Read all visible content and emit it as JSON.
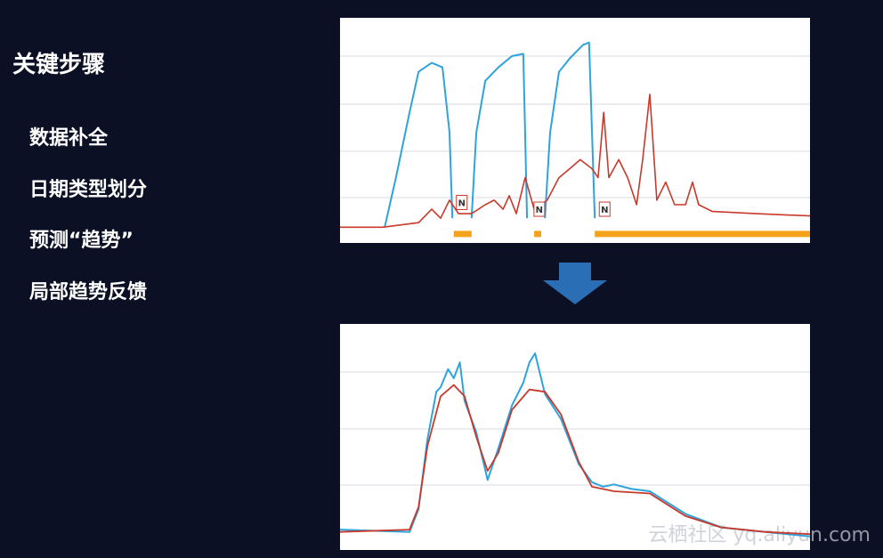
{
  "title": "关键步骤",
  "steps": [
    "数据补全",
    "日期类型划分",
    "预测“趋势”",
    "局部趋势反馈"
  ],
  "watermark": "云栖社区 yq.aliyun.com",
  "chart_data": [
    {
      "type": "line",
      "xlim": [
        0,
        100
      ],
      "ylim": [
        0,
        100
      ],
      "series": [
        {
          "color": "#2ea3dc",
          "width": 2,
          "x": [
            9.5,
            11.9,
            14.8,
            16.7,
            19.5,
            21.8,
            23.3,
            23.9,
            26,
            28.0,
            29.0,
            30.9,
            33.7,
            36.6,
            39.0,
            39.8,
            42,
            43.6,
            44.7,
            46.6,
            48.9,
            51.7,
            53.0,
            54.2
          ],
          "values": [
            7,
            29,
            58,
            76,
            80,
            78,
            49,
            11,
            null,
            11,
            49,
            72,
            78,
            83,
            84,
            11,
            null,
            11,
            49,
            76,
            82,
            88,
            89,
            11
          ]
        },
        {
          "color": "#c8392b",
          "width": 1.6,
          "x": [
            0,
            9.1,
            16.7,
            19.5,
            21.4,
            23.3,
            25.2,
            28.0,
            30.9,
            32.8,
            34.7,
            36.0,
            37.5,
            39.4,
            41.3,
            44.1,
            46.6,
            48.9,
            51.1,
            53.6,
            54.9,
            56.1,
            57.2,
            59.3,
            61.2,
            63.1,
            64.4,
            65.9,
            67.4,
            69.3,
            71.2,
            73.5,
            75.0,
            76.3,
            79.2,
            88.6,
            100
          ],
          "values": [
            7,
            7,
            9,
            15,
            11,
            19,
            13,
            13,
            17,
            19,
            15,
            21,
            13,
            29,
            15,
            19,
            29,
            33,
            37,
            33,
            29,
            58,
            29,
            37,
            29,
            17,
            37,
            66,
            19,
            27,
            17,
            17,
            27,
            17,
            14,
            13,
            12
          ]
        },
        {
          "color": "#f5a21b",
          "width": 7,
          "x": [
            24.2,
            28.0,
            30,
            41.3,
            42.8,
            45,
            54.2,
            100
          ],
          "values": [
            4,
            4,
            null,
            4,
            4,
            null,
            4,
            4
          ]
        }
      ],
      "annotations": [
        {
          "text": "N",
          "x": 25.9,
          "y": 18
        },
        {
          "text": "N",
          "x": 42.4,
          "y": 15
        },
        {
          "text": "N",
          "x": 56.3,
          "y": 15
        }
      ]
    },
    {
      "type": "line",
      "xlim": [
        0,
        100
      ],
      "ylim": [
        0,
        100
      ],
      "series": [
        {
          "color": "#2ea3dc",
          "width": 2,
          "x": [
            0,
            14.8,
            16.7,
            18.6,
            20.5,
            21.4,
            23.0,
            24.2,
            25.5,
            26.5,
            29.0,
            31.4,
            33.7,
            36.6,
            39.0,
            40.3,
            41.5,
            43.6,
            47.0,
            50.8,
            53.6,
            56.0,
            58.3,
            62.0,
            65.9,
            73.5,
            81.1,
            90.5,
            100
          ],
          "values": [
            9,
            8,
            18,
            49,
            70,
            72,
            80,
            76,
            83,
            66,
            52,
            31,
            45,
            64,
            74,
            83,
            87,
            69,
            58,
            38,
            30,
            28,
            29,
            27,
            26,
            16,
            10,
            8,
            6
          ]
        },
        {
          "color": "#c8392b",
          "width": 1.8,
          "x": [
            0,
            14.8,
            16.7,
            18.6,
            21.4,
            24.2,
            26.5,
            29.0,
            31.4,
            33.7,
            36.6,
            40.3,
            43.6,
            47.0,
            50.8,
            53.6,
            58.3,
            65.9,
            73.5,
            81.1,
            90.5,
            100
          ],
          "values": [
            8,
            9,
            19,
            46,
            68,
            73,
            68,
            50,
            35,
            43,
            62,
            71,
            70,
            60,
            39,
            28,
            26,
            25,
            15,
            10,
            8,
            7
          ]
        }
      ],
      "annotations": []
    }
  ]
}
